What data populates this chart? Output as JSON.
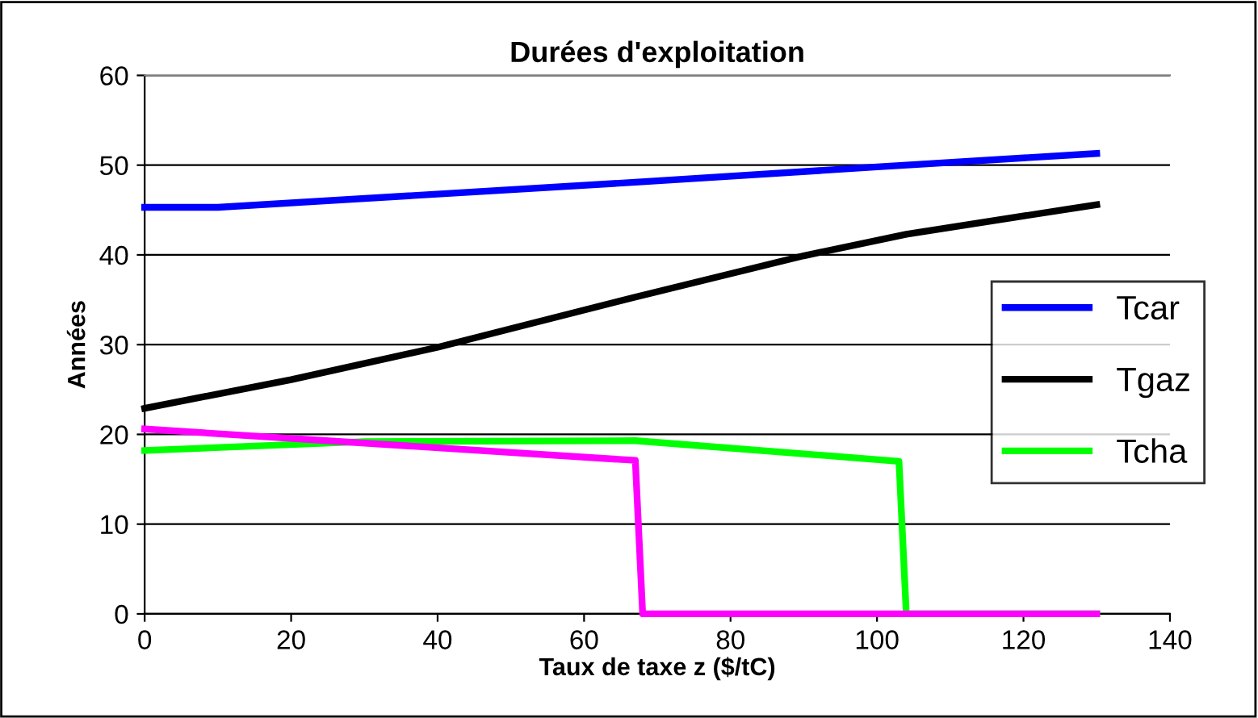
{
  "chart_data": {
    "type": "line",
    "title": "Durées d'exploitation",
    "xlabel": "Taux de taxe z ($/tC)",
    "ylabel": "Années",
    "xlim": [
      0,
      140
    ],
    "xticks": [
      0,
      20,
      40,
      60,
      80,
      100,
      120,
      140
    ],
    "ylim": [
      0,
      60
    ],
    "yticks": [
      0,
      10,
      20,
      30,
      40,
      50,
      60
    ],
    "grid": "y",
    "legend": "right",
    "marker": "none",
    "line_style": "solid",
    "series": [
      {
        "name": "Tcar",
        "color": "#0000ff",
        "x": [
          0,
          10,
          67,
          100,
          130
        ],
        "values": [
          45.3,
          45.3,
          48.1,
          49.8,
          51.3
        ]
      },
      {
        "name": "Tgaz",
        "color": "#000000",
        "x": [
          0,
          20,
          40,
          67,
          90,
          104,
          130
        ],
        "values": [
          22.9,
          26.1,
          29.7,
          35.3,
          39.9,
          42.3,
          45.6
        ]
      },
      {
        "name": "Tcha",
        "color": "#00ff00",
        "x": [
          0,
          30,
          67,
          103,
          104,
          130
        ],
        "values": [
          18.2,
          19.2,
          19.3,
          17.0,
          0,
          0
        ]
      },
      {
        "color": "#ff00ff",
        "x": [
          0,
          67,
          68,
          130
        ],
        "values": [
          20.6,
          17.1,
          0,
          0
        ]
      }
    ]
  }
}
